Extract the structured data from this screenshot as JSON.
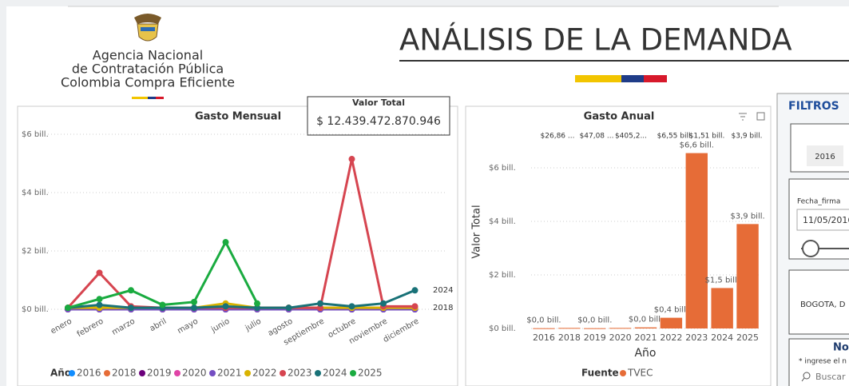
{
  "header": {
    "agency": [
      "Agencia Nacional",
      "de Contratación Pública",
      "Colombia Compra Eficiente"
    ],
    "title": "ANÁLISIS DE LA DEMANDA"
  },
  "card": {
    "label": "Valor Total",
    "value": "$ 12.439.472.870.946"
  },
  "filters": {
    "title": "FILTROS",
    "year_button": "2016",
    "date_label": "Fecha_firma",
    "date_value": "11/05/2016",
    "location": "BOGOTA, D",
    "search_title": "No",
    "search_hint": "* ingrese el n",
    "search_placeholder": "Buscar"
  },
  "chart_data": [
    {
      "type": "line",
      "title": "Gasto Mensual",
      "legend_title": "Año",
      "categories": [
        "enero",
        "febrero",
        "marzo",
        "abril",
        "mayo",
        "junio",
        "julio",
        "agosto",
        "septiembre",
        "octubre",
        "noviembre",
        "diciembre"
      ],
      "series": [
        {
          "name": "2016",
          "color": "#118DFF",
          "values": [
            0,
            0,
            0,
            0,
            0,
            0,
            0,
            0,
            0,
            0,
            0,
            0
          ]
        },
        {
          "name": "2018",
          "color": "#E66C37",
          "values": [
            0.05,
            0.05,
            0.05,
            0.05,
            0.05,
            0.05,
            0.05,
            0.05,
            0.05,
            0.05,
            0.05,
            0.05
          ]
        },
        {
          "name": "2019",
          "color": "#6B007B",
          "values": [
            0,
            0,
            0,
            0,
            0,
            0,
            0,
            0,
            0,
            0,
            0,
            0
          ]
        },
        {
          "name": "2020",
          "color": "#E044A7",
          "values": [
            0,
            0,
            0,
            0,
            0,
            0,
            0,
            0,
            0,
            0,
            0,
            0
          ]
        },
        {
          "name": "2021",
          "color": "#744EC2",
          "values": [
            0,
            0,
            0,
            0,
            0,
            0,
            0,
            0,
            0,
            0,
            0,
            0
          ]
        },
        {
          "name": "2022",
          "color": "#D9B300",
          "values": [
            0.05,
            0.05,
            0.05,
            0.05,
            0.05,
            0.2,
            0.05,
            0.05,
            0.05,
            0.05,
            0.05,
            0.05
          ]
        },
        {
          "name": "2023",
          "color": "#D64550",
          "values": [
            0.05,
            1.25,
            0.1,
            0.05,
            0.05,
            0.05,
            0.05,
            0.05,
            0.05,
            5.15,
            0.1,
            0.1
          ]
        },
        {
          "name": "2024",
          "color": "#197278",
          "values": [
            0.05,
            0.15,
            0.05,
            0.05,
            0.05,
            0.1,
            0.05,
            0.05,
            0.2,
            0.1,
            0.2,
            0.65
          ]
        },
        {
          "name": "2025",
          "color": "#1AAB40",
          "values": [
            0.05,
            0.35,
            0.65,
            0.15,
            0.25,
            2.3,
            0.2,
            null,
            null,
            null,
            null,
            null
          ]
        }
      ],
      "end_labels": [
        "2024",
        "2018"
      ],
      "ylim": [
        0,
        6
      ],
      "yticks": [
        {
          "value": 0,
          "label": "$0 bill."
        },
        {
          "value": 2,
          "label": "$2 bill."
        },
        {
          "value": 4,
          "label": "$4 bill."
        },
        {
          "value": 6,
          "label": "$6 bill."
        }
      ],
      "grid": true
    },
    {
      "type": "bar",
      "title": "Gasto Anual",
      "xlabel": "Año",
      "ylabel": "Valor Total",
      "legend_title": "Fuente",
      "categories": [
        "2016",
        "2018",
        "2019",
        "2020",
        "2021",
        "2022",
        "2023",
        "2024",
        "2025"
      ],
      "series": [
        {
          "name": "TVEC",
          "color": "#E66C37",
          "values": [
            0.01,
            0.02,
            0.01,
            0.02,
            0.04,
            0.4,
            6.55,
            1.51,
            3.9
          ],
          "value_labels": [
            "$0,0 bill.",
            null,
            "$0,0 bill.",
            null,
            "$0,0 bill.",
            "$0,4 bill.",
            "$6,6 bill.",
            "$1,5 bill.",
            "$3,9 bill."
          ]
        }
      ],
      "annotations": [
        "$26,86 ...",
        "$47,08 ...",
        "$405,2...",
        "$6,55 bill.",
        "$1,51 bill.",
        "$3,9 bill."
      ],
      "ylim": [
        0,
        7
      ],
      "yticks": [
        {
          "value": 0,
          "label": "$0 bill."
        },
        {
          "value": 2,
          "label": "$2 bill."
        },
        {
          "value": 4,
          "label": "$4 bill."
        },
        {
          "value": 6,
          "label": "$6 bill."
        }
      ],
      "grid": true
    }
  ]
}
